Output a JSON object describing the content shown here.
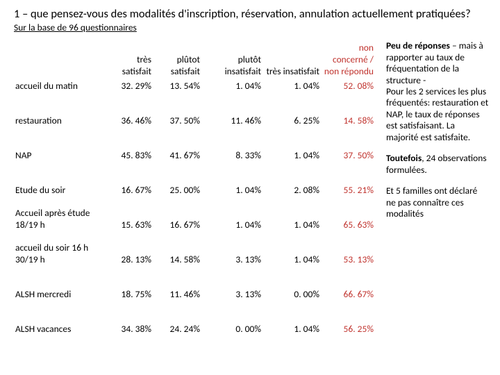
{
  "title": "1 – que pensez-vous des modalités d'inscription, réservation, annulation actuellement pratiquées?",
  "subtitle": "Sur la base de 96 questionnaires",
  "table": {
    "columns": [
      {
        "label": "",
        "align": "left",
        "width": 134
      },
      {
        "label": "très satisfait",
        "align": "right",
        "width": 68
      },
      {
        "label": "plûtot satisfait",
        "align": "right",
        "width": 70
      },
      {
        "label": "plutôt insatisfait",
        "align": "right",
        "width": 88
      },
      {
        "label": "très insatisfait",
        "align": "right",
        "width": 84
      },
      {
        "label": "non concerné / non répondu",
        "align": "right",
        "width": 78,
        "color": "#c0332e"
      }
    ],
    "rows": [
      {
        "label": "accueil du matin",
        "cells": [
          "32. 29%",
          "13. 54%",
          "1. 04%",
          "1. 04%",
          "52. 08%"
        ]
      },
      {
        "label": "restauration",
        "cells": [
          "36. 46%",
          "37. 50%",
          "11. 46%",
          "6. 25%",
          "14. 58%"
        ]
      },
      {
        "label": "NAP",
        "cells": [
          "45. 83%",
          "41. 67%",
          "8. 33%",
          "1. 04%",
          "37. 50%"
        ]
      },
      {
        "label": "Etude du soir",
        "cells": [
          "16. 67%",
          "25. 00%",
          "1. 04%",
          "2. 08%",
          "55. 21%"
        ]
      },
      {
        "label": "Accueil après étude 18/19 h",
        "cells": [
          "15. 63%",
          "16. 67%",
          "1. 04%",
          "1. 04%",
          "65. 63%"
        ]
      },
      {
        "label": "accueil du soir 16 h 30/19 h",
        "cells": [
          "28. 13%",
          "14. 58%",
          "3. 13%",
          "1. 04%",
          "53. 13%"
        ]
      },
      {
        "label": "ALSH mercredi",
        "cells": [
          "18. 75%",
          "11. 46%",
          "3. 13%",
          "0. 00%",
          "66. 67%"
        ]
      },
      {
        "label": "ALSH vacances",
        "cells": [
          "34. 38%",
          "24. 24%",
          "0. 00%",
          "1. 04%",
          "56. 25%"
        ]
      }
    ],
    "last_col_color": "#c0332e",
    "header_fontsize": 13.5,
    "body_fontsize": 13.5
  },
  "notes": {
    "p1_a": "Peu de réponses ",
    "p1_b": "– mais à rapporter au taux de fréquentation de la structure -",
    "p2": "Pour les 2 services les plus fréquentés: restauration et NAP, le taux de réponses est satisfaisant. La majorité est satisfaite.",
    "p3_a": "Toutefois",
    "p3_b": ", 24 observations formulées.",
    "p4": "Et 5 familles ont déclaré ne pas connaître ces modalités"
  }
}
